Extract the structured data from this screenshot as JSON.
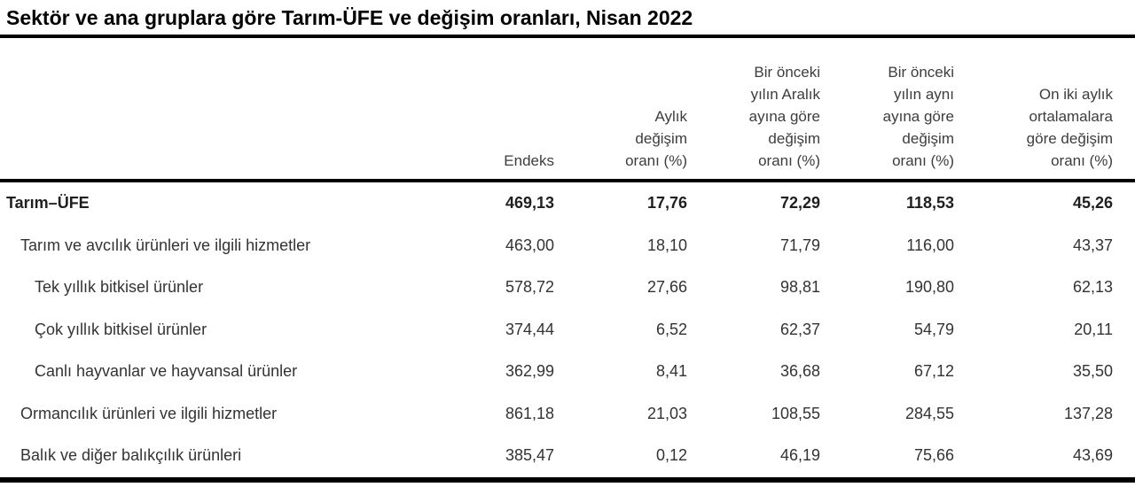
{
  "title": "Sektör ve ana gruplara göre Tarım-ÜFE ve değişim oranları, Nisan 2022",
  "colors": {
    "background": "#ffffff",
    "rule": "#000000",
    "title_text": "#000000",
    "header_text": "#3d3d3d",
    "body_text": "#333333"
  },
  "table": {
    "headers": [
      "",
      "Endeks",
      "Aylık\ndeğişim\noranı (%)",
      "Bir önceki\nyılın Aralık\nayına göre\ndeğişim\noranı (%)",
      "Bir önceki\nyılın aynı\nayına göre\ndeğişim\noranı (%)",
      "On iki aylık\nortalamalara\ngöre değişim\noranı (%)"
    ],
    "rows": [
      {
        "label": "Tarım–ÜFE",
        "indent": 0,
        "bold": true,
        "values": [
          "469,13",
          "17,76",
          "72,29",
          "118,53",
          "45,26"
        ]
      },
      {
        "label": "Tarım ve avcılık ürünleri ve ilgili hizmetler",
        "indent": 1,
        "bold": false,
        "values": [
          "463,00",
          "18,10",
          "71,79",
          "116,00",
          "43,37"
        ]
      },
      {
        "label": "Tek yıllık bitkisel ürünler",
        "indent": 2,
        "bold": false,
        "values": [
          "578,72",
          "27,66",
          "98,81",
          "190,80",
          "62,13"
        ]
      },
      {
        "label": "Çok yıllık bitkisel ürünler",
        "indent": 2,
        "bold": false,
        "values": [
          "374,44",
          "6,52",
          "62,37",
          "54,79",
          "20,11"
        ]
      },
      {
        "label": "Canlı hayvanlar ve hayvansal ürünler",
        "indent": 2,
        "bold": false,
        "values": [
          "362,99",
          "8,41",
          "36,68",
          "67,12",
          "35,50"
        ]
      },
      {
        "label": "Ormancılık ürünleri ve ilgili hizmetler",
        "indent": 1,
        "bold": false,
        "values": [
          "861,18",
          "21,03",
          "108,55",
          "284,55",
          "137,28"
        ]
      },
      {
        "label": "Balık ve diğer balıkçılık ürünleri",
        "indent": 1,
        "bold": false,
        "values": [
          "385,47",
          "0,12",
          "46,19",
          "75,66",
          "43,69"
        ]
      }
    ]
  },
  "chart_data": {
    "type": "table",
    "title": "Sektör ve ana gruplara göre Tarım-ÜFE ve değişim oranları, Nisan 2022",
    "columns": [
      "",
      "Endeks",
      "Aylık değişim oranı (%)",
      "Bir önceki yılın Aralık ayına göre değişim oranı (%)",
      "Bir önceki yılın aynı ayına göre değişim oranı (%)",
      "On iki aylık ortalamalara göre değişim oranı (%)"
    ],
    "rows": [
      [
        "Tarım–ÜFE",
        469.13,
        17.76,
        72.29,
        118.53,
        45.26
      ],
      [
        "Tarım ve avcılık ürünleri ve ilgili hizmetler",
        463.0,
        18.1,
        71.79,
        116.0,
        43.37
      ],
      [
        "Tek yıllık bitkisel ürünler",
        578.72,
        27.66,
        98.81,
        190.8,
        62.13
      ],
      [
        "Çok yıllık bitkisel ürünler",
        374.44,
        6.52,
        62.37,
        54.79,
        20.11
      ],
      [
        "Canlı hayvanlar ve hayvansal ürünler",
        362.99,
        8.41,
        36.68,
        67.12,
        35.5
      ],
      [
        "Ormancılık ürünleri ve ilgili hizmetler",
        861.18,
        21.03,
        108.55,
        284.55,
        137.28
      ],
      [
        "Balık ve diğer balıkçılık ürünleri",
        385.47,
        0.12,
        46.19,
        75.66,
        43.69
      ]
    ]
  }
}
